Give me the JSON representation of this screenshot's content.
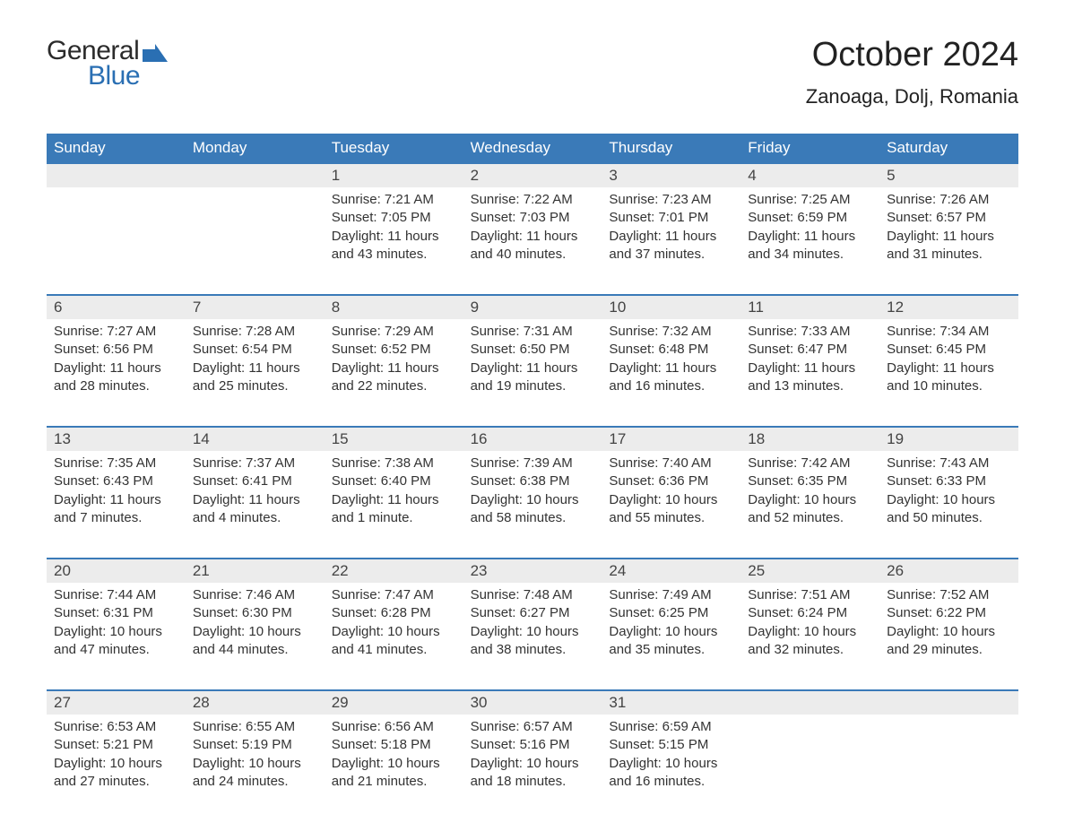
{
  "brand": {
    "general": "General",
    "blue": "Blue",
    "flag_color": "#2a6fb3"
  },
  "title": "October 2024",
  "location": "Zanoaga, Dolj, Romania",
  "colors": {
    "header_bg": "#3a7ab8",
    "header_text": "#ffffff",
    "daynum_bg": "#ececec",
    "week_border": "#3a7ab8",
    "body_text": "#333333",
    "page_bg": "#ffffff"
  },
  "font": {
    "family": "Arial",
    "title_size_pt": 28,
    "location_size_pt": 16,
    "header_size_pt": 13,
    "day_size_pt": 13,
    "body_size_pt": 11
  },
  "day_headers": [
    "Sunday",
    "Monday",
    "Tuesday",
    "Wednesday",
    "Thursday",
    "Friday",
    "Saturday"
  ],
  "weeks": [
    {
      "days": [
        {
          "num": "",
          "body": ""
        },
        {
          "num": "",
          "body": ""
        },
        {
          "num": "1",
          "body": "Sunrise: 7:21 AM\nSunset: 7:05 PM\nDaylight: 11 hours and 43 minutes."
        },
        {
          "num": "2",
          "body": "Sunrise: 7:22 AM\nSunset: 7:03 PM\nDaylight: 11 hours and 40 minutes."
        },
        {
          "num": "3",
          "body": "Sunrise: 7:23 AM\nSunset: 7:01 PM\nDaylight: 11 hours and 37 minutes."
        },
        {
          "num": "4",
          "body": "Sunrise: 7:25 AM\nSunset: 6:59 PM\nDaylight: 11 hours and 34 minutes."
        },
        {
          "num": "5",
          "body": "Sunrise: 7:26 AM\nSunset: 6:57 PM\nDaylight: 11 hours and 31 minutes."
        }
      ]
    },
    {
      "days": [
        {
          "num": "6",
          "body": "Sunrise: 7:27 AM\nSunset: 6:56 PM\nDaylight: 11 hours and 28 minutes."
        },
        {
          "num": "7",
          "body": "Sunrise: 7:28 AM\nSunset: 6:54 PM\nDaylight: 11 hours and 25 minutes."
        },
        {
          "num": "8",
          "body": "Sunrise: 7:29 AM\nSunset: 6:52 PM\nDaylight: 11 hours and 22 minutes."
        },
        {
          "num": "9",
          "body": "Sunrise: 7:31 AM\nSunset: 6:50 PM\nDaylight: 11 hours and 19 minutes."
        },
        {
          "num": "10",
          "body": "Sunrise: 7:32 AM\nSunset: 6:48 PM\nDaylight: 11 hours and 16 minutes."
        },
        {
          "num": "11",
          "body": "Sunrise: 7:33 AM\nSunset: 6:47 PM\nDaylight: 11 hours and 13 minutes."
        },
        {
          "num": "12",
          "body": "Sunrise: 7:34 AM\nSunset: 6:45 PM\nDaylight: 11 hours and 10 minutes."
        }
      ]
    },
    {
      "days": [
        {
          "num": "13",
          "body": "Sunrise: 7:35 AM\nSunset: 6:43 PM\nDaylight: 11 hours and 7 minutes."
        },
        {
          "num": "14",
          "body": "Sunrise: 7:37 AM\nSunset: 6:41 PM\nDaylight: 11 hours and 4 minutes."
        },
        {
          "num": "15",
          "body": "Sunrise: 7:38 AM\nSunset: 6:40 PM\nDaylight: 11 hours and 1 minute."
        },
        {
          "num": "16",
          "body": "Sunrise: 7:39 AM\nSunset: 6:38 PM\nDaylight: 10 hours and 58 minutes."
        },
        {
          "num": "17",
          "body": "Sunrise: 7:40 AM\nSunset: 6:36 PM\nDaylight: 10 hours and 55 minutes."
        },
        {
          "num": "18",
          "body": "Sunrise: 7:42 AM\nSunset: 6:35 PM\nDaylight: 10 hours and 52 minutes."
        },
        {
          "num": "19",
          "body": "Sunrise: 7:43 AM\nSunset: 6:33 PM\nDaylight: 10 hours and 50 minutes."
        }
      ]
    },
    {
      "days": [
        {
          "num": "20",
          "body": "Sunrise: 7:44 AM\nSunset: 6:31 PM\nDaylight: 10 hours and 47 minutes."
        },
        {
          "num": "21",
          "body": "Sunrise: 7:46 AM\nSunset: 6:30 PM\nDaylight: 10 hours and 44 minutes."
        },
        {
          "num": "22",
          "body": "Sunrise: 7:47 AM\nSunset: 6:28 PM\nDaylight: 10 hours and 41 minutes."
        },
        {
          "num": "23",
          "body": "Sunrise: 7:48 AM\nSunset: 6:27 PM\nDaylight: 10 hours and 38 minutes."
        },
        {
          "num": "24",
          "body": "Sunrise: 7:49 AM\nSunset: 6:25 PM\nDaylight: 10 hours and 35 minutes."
        },
        {
          "num": "25",
          "body": "Sunrise: 7:51 AM\nSunset: 6:24 PM\nDaylight: 10 hours and 32 minutes."
        },
        {
          "num": "26",
          "body": "Sunrise: 7:52 AM\nSunset: 6:22 PM\nDaylight: 10 hours and 29 minutes."
        }
      ]
    },
    {
      "days": [
        {
          "num": "27",
          "body": "Sunrise: 6:53 AM\nSunset: 5:21 PM\nDaylight: 10 hours and 27 minutes."
        },
        {
          "num": "28",
          "body": "Sunrise: 6:55 AM\nSunset: 5:19 PM\nDaylight: 10 hours and 24 minutes."
        },
        {
          "num": "29",
          "body": "Sunrise: 6:56 AM\nSunset: 5:18 PM\nDaylight: 10 hours and 21 minutes."
        },
        {
          "num": "30",
          "body": "Sunrise: 6:57 AM\nSunset: 5:16 PM\nDaylight: 10 hours and 18 minutes."
        },
        {
          "num": "31",
          "body": "Sunrise: 6:59 AM\nSunset: 5:15 PM\nDaylight: 10 hours and 16 minutes."
        },
        {
          "num": "",
          "body": ""
        },
        {
          "num": "",
          "body": ""
        }
      ]
    }
  ]
}
